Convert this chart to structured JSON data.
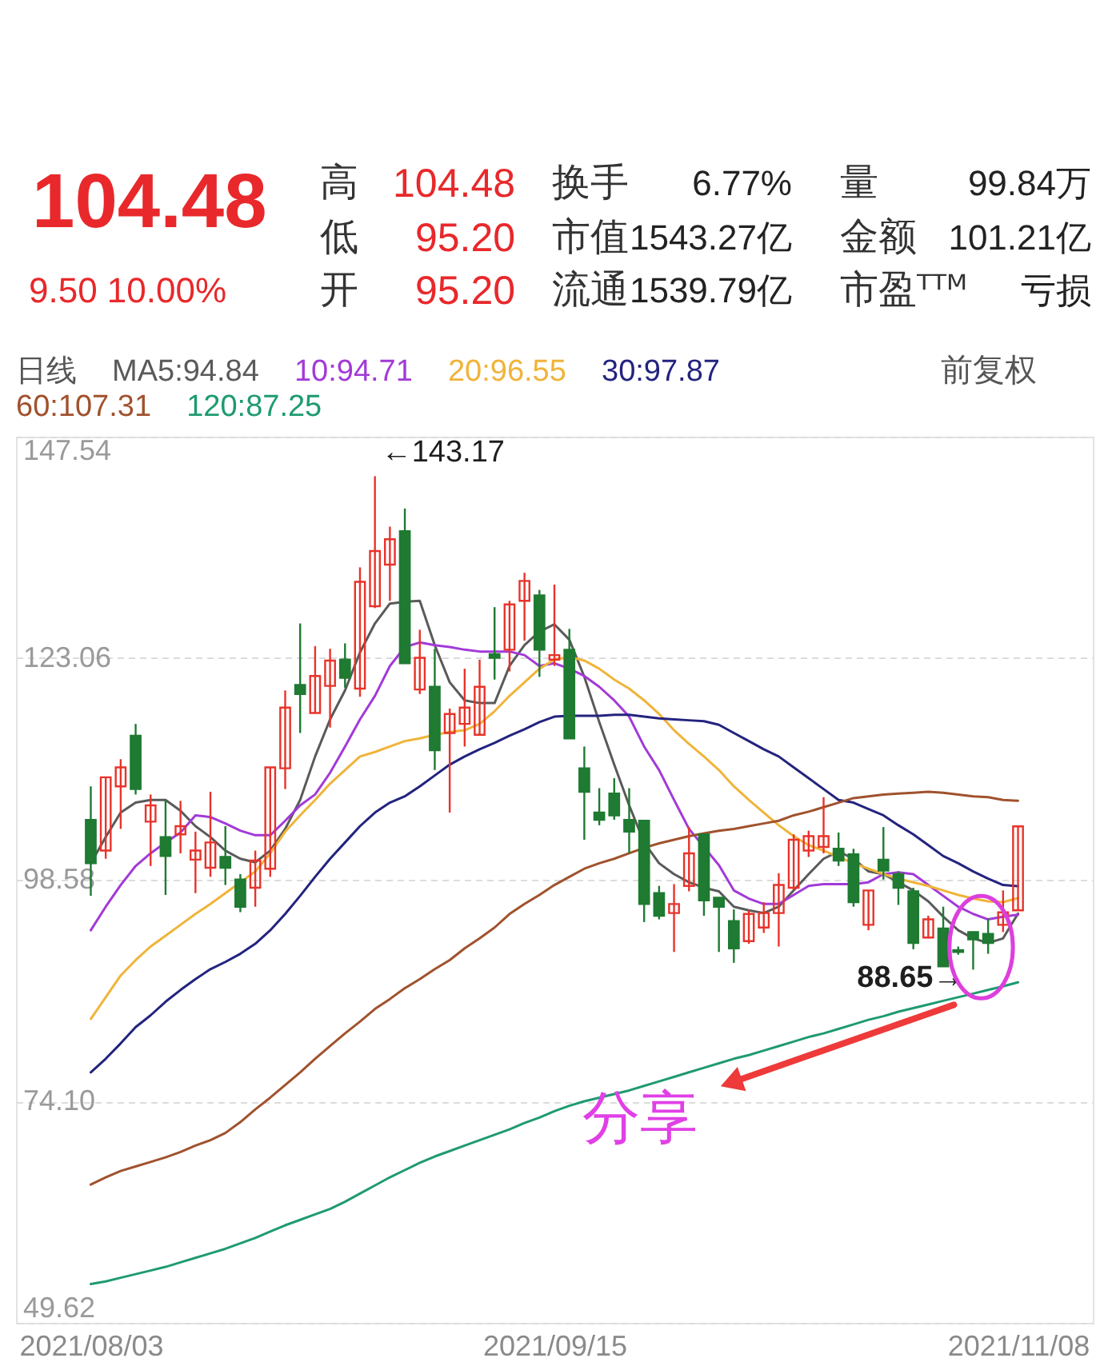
{
  "chart_data": [
    {
      "type": "other",
      "title": "104.48",
      "subtitle": "9.50 10.00%",
      "annotations": [
        "高",
        "104.48",
        "换手",
        "6.77%",
        "量",
        "99.84万",
        "低",
        "95.20",
        "市值",
        "1543.27亿",
        "金额",
        "101.21亿",
        "开",
        "95.20",
        "流通",
        "1539.79亿",
        "市盈ᵀᵀᴹ",
        "亏损"
      ]
    },
    {
      "type": "candlestick",
      "categories": [
        "2021/08/03",
        null,
        null,
        null,
        null,
        null,
        null,
        null,
        null,
        null,
        null,
        null,
        null,
        null,
        null,
        null,
        null,
        null,
        null,
        null,
        null,
        null,
        null,
        null,
        null,
        null,
        null,
        null,
        null,
        null,
        null,
        "2021/09/15",
        null,
        null,
        null,
        null,
        null,
        null,
        null,
        null,
        null,
        null,
        null,
        null,
        null,
        null,
        null,
        null,
        null,
        null,
        null,
        null,
        null,
        null,
        null,
        null,
        null,
        null,
        null,
        null,
        null,
        null,
        "2021/11/08"
      ],
      "ohlc": [
        [
          105.2,
          108.9,
          96.8,
          100.4
        ],
        [
          101.8,
          109.9,
          100.9,
          109.9
        ],
        [
          108.9,
          111.9,
          104.2,
          111.0
        ],
        [
          114.5,
          115.8,
          108.0,
          108.6
        ],
        [
          105.0,
          108.0,
          100.1,
          106.8
        ],
        [
          103.3,
          107.4,
          96.9,
          101.2
        ],
        [
          103.6,
          107.3,
          101.5,
          104.5
        ],
        [
          100.8,
          103.9,
          97.1,
          101.8
        ],
        [
          99.9,
          108.3,
          98.9,
          102.7
        ],
        [
          101.1,
          104.5,
          98.0,
          99.9
        ],
        [
          98.6,
          99.2,
          95.0,
          95.6
        ],
        [
          97.7,
          101.8,
          95.6,
          100.7
        ],
        [
          99.8,
          111.0,
          98.9,
          111.0
        ],
        [
          110.9,
          119.5,
          108.6,
          117.6
        ],
        [
          120.1,
          126.9,
          114.8,
          119.1
        ],
        [
          117.0,
          124.4,
          117.0,
          121.1
        ],
        [
          120.0,
          124.1,
          115.4,
          122.8
        ],
        [
          122.9,
          124.7,
          119.8,
          120.9
        ],
        [
          119.7,
          133.1,
          118.8,
          131.5
        ],
        [
          128.8,
          143.17,
          128.6,
          134.9
        ],
        [
          133.4,
          137.6,
          129.4,
          136.2
        ],
        [
          137.1,
          139.6,
          122.5,
          122.5
        ],
        [
          119.6,
          126.2,
          119.1,
          123.1
        ],
        [
          119.9,
          124.1,
          110.7,
          112.9
        ],
        [
          114.8,
          117.5,
          106.0,
          116.9
        ],
        [
          115.8,
          121.9,
          113.3,
          117.6
        ],
        [
          114.6,
          122.9,
          114.5,
          119.9
        ],
        [
          123.5,
          128.7,
          120.7,
          123.1
        ],
        [
          124.0,
          129.4,
          121.6,
          129.0
        ],
        [
          129.4,
          132.5,
          125.0,
          131.6
        ],
        [
          130.0,
          130.6,
          121.0,
          124.0
        ],
        [
          122.9,
          131.2,
          122.2,
          123.4
        ],
        [
          124.0,
          126.3,
          114.2,
          114.2
        ],
        [
          110.9,
          113.3,
          103.0,
          108.3
        ],
        [
          106.0,
          108.7,
          104.6,
          105.2
        ],
        [
          108.1,
          109.8,
          105.2,
          105.7
        ],
        [
          105.2,
          108.7,
          101.5,
          103.9
        ],
        [
          105.1,
          105.1,
          93.9,
          95.9
        ],
        [
          97.1,
          97.9,
          94.2,
          94.6
        ],
        [
          94.9,
          98.1,
          90.6,
          95.9
        ],
        [
          97.9,
          104.4,
          97.3,
          101.5
        ],
        [
          103.6,
          103.6,
          94.6,
          96.3
        ],
        [
          96.6,
          96.6,
          90.6,
          95.6
        ],
        [
          94.0,
          95.3,
          89.4,
          91.0
        ],
        [
          91.8,
          95.2,
          91.5,
          94.8
        ],
        [
          93.3,
          96.1,
          92.7,
          94.9
        ],
        [
          94.9,
          99.3,
          91.2,
          98.0
        ],
        [
          97.7,
          103.6,
          97.4,
          103.0
        ],
        [
          101.8,
          104.0,
          101.1,
          103.4
        ],
        [
          102.2,
          107.7,
          101.5,
          103.4
        ],
        [
          102.0,
          103.8,
          100.1,
          100.7
        ],
        [
          101.4,
          102.0,
          95.6,
          96.1
        ],
        [
          93.6,
          97.4,
          93.0,
          97.4
        ],
        [
          100.8,
          104.4,
          98.6,
          99.6
        ],
        [
          99.2,
          99.5,
          95.8,
          97.7
        ],
        [
          97.3,
          97.7,
          90.9,
          91.6
        ],
        [
          92.2,
          94.6,
          92.1,
          94.2
        ],
        [
          93.2,
          95.6,
          89.0,
          89.0
        ],
        [
          90.8,
          91.2,
          90.3,
          90.6
        ],
        [
          92.8,
          92.8,
          88.65,
          92.0
        ],
        [
          92.6,
          94.3,
          90.4,
          91.6
        ],
        [
          93.6,
          97.4,
          92.8,
          94.98
        ],
        [
          95.2,
          104.48,
          95.2,
          104.48
        ]
      ],
      "colors": [
        "#1f7a32",
        "#e8332a",
        "#e8332a",
        "#1f7a32",
        "#e8332a",
        "#1f7a32",
        "#e8332a",
        "#e8332a",
        "#e8332a",
        "#1f7a32",
        "#1f7a32",
        "#e8332a",
        "#e8332a",
        "#e8332a",
        "#1f7a32",
        "#e8332a",
        "#e8332a",
        "#1f7a32",
        "#e8332a",
        "#e8332a",
        "#e8332a",
        "#1f7a32",
        "#e8332a",
        "#1f7a32",
        "#e8332a",
        "#e8332a",
        "#e8332a",
        "#1f7a32",
        "#e8332a",
        "#e8332a",
        "#1f7a32",
        "#e8332a",
        "#1f7a32",
        "#1f7a32",
        "#1f7a32",
        "#1f7a32",
        "#1f7a32",
        "#1f7a32",
        "#1f7a32",
        "#e8332a",
        "#e8332a",
        "#1f7a32",
        "#1f7a32",
        "#1f7a32",
        "#e8332a",
        "#e8332a",
        "#e8332a",
        "#e8332a",
        "#e8332a",
        "#e8332a",
        "#1f7a32",
        "#1f7a32",
        "#e8332a",
        "#1f7a32",
        "#1f7a32",
        "#1f7a32",
        "#e8332a",
        "#1f7a32",
        "#1f7a32",
        "#1f7a32",
        "#1f7a32",
        "#e8332a",
        "#e8332a"
      ],
      "series": [
        {
          "name": "MA5:94.84",
          "type": "line",
          "color": "#5a5a5a",
          "values": [
            100.4,
            103.3,
            106.0,
            107.1,
            107.4,
            107.4,
            106.2,
            104.5,
            103.3,
            101.8,
            100.9,
            100.5,
            101.8,
            104.2,
            107.4,
            112.2,
            116.3,
            119.5,
            123.7,
            126.9,
            129.1,
            129.3,
            129.4,
            124.5,
            120.4,
            118.4,
            118.1,
            118.1,
            122.2,
            124.5,
            126.0,
            126.8,
            125.1,
            121.0,
            116.0,
            111.3,
            106.8,
            102.7,
            100.4,
            99.2,
            98.3,
            97.7,
            97.3,
            95.6,
            95.2,
            94.9,
            95.6,
            97.4,
            99.2,
            100.9,
            101.7,
            100.9,
            99.5,
            99.2,
            98.3,
            97.4,
            96.2,
            94.5,
            93.0,
            92.1,
            91.6,
            92.1,
            94.84
          ]
        },
        {
          "name": "10:94.71",
          "type": "line",
          "color": "#a23ad8",
          "values": [
            93.0,
            95.6,
            98.0,
            100.1,
            101.5,
            102.7,
            103.8,
            105.7,
            105.5,
            104.8,
            104.0,
            103.5,
            103.5,
            105.1,
            106.8,
            108.0,
            110.4,
            113.3,
            116.3,
            118.9,
            122.2,
            124.3,
            124.8,
            124.5,
            124.3,
            124.0,
            123.8,
            123.8,
            123.8,
            123.4,
            122.2,
            122.5,
            121.9,
            121.1,
            119.9,
            118.4,
            116.6,
            113.3,
            110.7,
            107.4,
            104.2,
            null,
            100.2,
            97.4,
            96.5,
            95.9,
            95.9,
            96.9,
            97.9,
            98.1,
            98.1,
            98.1,
            98.3,
            99.2,
            99.4,
            99.2,
            98.0,
            96.8,
            95.6,
            94.8,
            94.2,
            94.5,
            94.71
          ]
        },
        {
          "name": "20:96.55",
          "type": "line",
          "color": "#f0b43a",
          "values": [
            83.2,
            85.6,
            88.0,
            89.7,
            91.2,
            92.4,
            93.6,
            94.8,
            95.9,
            97.1,
            98.3,
            99.5,
            101.5,
            103.9,
            105.7,
            107.4,
            109.2,
            110.7,
            112.2,
            112.7,
            113.3,
            113.9,
            114.2,
            114.6,
            114.9,
            115.1,
            115.8,
            117.2,
            118.9,
            120.4,
            121.9,
            122.9,
            123.2,
            122.8,
            121.9,
            120.7,
            119.7,
            118.4,
            116.9,
            115.1,
            113.6,
            112.2,
            110.7,
            108.9,
            107.4,
            106.0,
            104.6,
            103.4,
            102.4,
            101.8,
            101.1,
            100.4,
            99.8,
            99.2,
            98.7,
            98.3,
            97.9,
            97.4,
            96.9,
            96.5,
            96.2,
            96.1,
            96.55
          ]
        },
        {
          "name": "30:97.87",
          "type": "line",
          "color": "#23237f",
          "values": [
            77.3,
            78.8,
            80.5,
            82.3,
            83.6,
            85.1,
            86.4,
            87.6,
            88.7,
            89.5,
            90.4,
            91.5,
            93.0,
            94.8,
            96.8,
            98.9,
            100.9,
            102.7,
            104.5,
            106.0,
            107.1,
            107.8,
            108.9,
            110.1,
            111.3,
            112.2,
            113.0,
            113.7,
            114.5,
            115.2,
            116.0,
            116.6,
            116.7,
            116.7,
            116.7,
            116.8,
            116.8,
            116.6,
            116.4,
            116.3,
            116.2,
            116.1,
            115.7,
            114.8,
            113.9,
            113.0,
            112.2,
            111.0,
            109.8,
            108.6,
            107.4,
            107.1,
            106.4,
            105.7,
            104.6,
            103.6,
            102.4,
            101.2,
            100.4,
            99.5,
            98.7,
            98.0,
            97.87
          ]
        },
        {
          "name": "60:107.31",
          "type": "line",
          "color": "#a0522d",
          "values": [
            64.9,
            65.7,
            66.4,
            66.9,
            67.4,
            67.9,
            68.5,
            69.2,
            69.8,
            70.6,
            71.8,
            73.2,
            74.5,
            75.9,
            77.3,
            78.8,
            80.2,
            81.6,
            82.9,
            84.3,
            85.4,
            86.6,
            87.6,
            88.7,
            89.7,
            91.0,
            92.1,
            93.3,
            94.8,
            95.9,
            96.9,
            98.0,
            98.9,
            99.8,
            100.4,
            100.9,
            101.5,
            102.1,
            102.6,
            103.0,
            103.4,
            103.7,
            104.0,
            104.2,
            104.5,
            104.8,
            105.1,
            105.7,
            106.1,
            106.6,
            107.1,
            107.6,
            107.8,
            108.0,
            108.1,
            108.2,
            108.3,
            108.2,
            108.0,
            107.8,
            107.7,
            107.4,
            107.31
          ]
        },
        {
          "name": "120:87.25",
          "type": "line",
          "color": "#1f9a72",
          "values": [
            53.9,
            54.2,
            54.6,
            55.0,
            55.4,
            55.8,
            56.3,
            56.8,
            57.3,
            57.8,
            58.4,
            59.0,
            59.7,
            60.4,
            61.0,
            61.6,
            62.2,
            63.0,
            63.9,
            64.8,
            65.7,
            66.5,
            67.3,
            68.0,
            68.6,
            69.2,
            69.8,
            70.4,
            71.0,
            71.7,
            72.3,
            73.0,
            73.6,
            74.1,
            74.5,
            74.9,
            75.3,
            75.8,
            76.3,
            76.8,
            77.3,
            77.8,
            78.3,
            78.8,
            79.2,
            79.7,
            80.2,
            80.7,
            81.2,
            81.6,
            82.1,
            82.6,
            83.1,
            83.5,
            84.0,
            84.4,
            84.8,
            85.2,
            85.6,
            86.0,
            86.4,
            86.8,
            87.25
          ]
        }
      ],
      "ylim": [
        49.62,
        147.54
      ],
      "yticks": [
        49.62,
        {
          "value": 74.1,
          "label": "74.10"
        },
        98.58,
        123.06,
        147.54
      ],
      "grid": "y",
      "legend": "top left",
      "legend_title": "日线",
      "subtitle": "前复权",
      "annotations": [
        "←143.17",
        "88.65→",
        "分享"
      ]
    }
  ]
}
